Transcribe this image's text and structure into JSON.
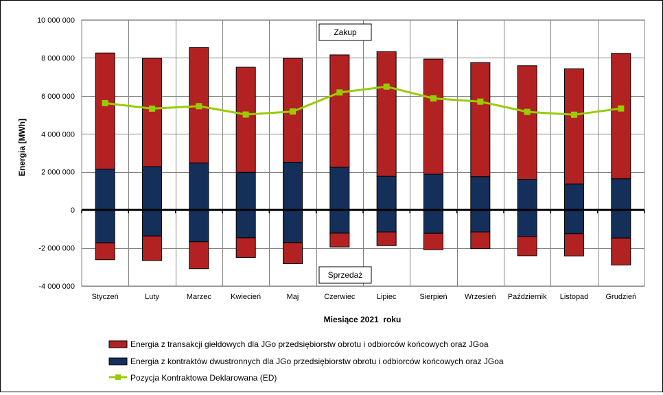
{
  "chart_data": {
    "type": "bar",
    "xlabel": "Miesiące 2021  roku",
    "ylabel": "Energia [MWh]",
    "ylim": [
      -4000000,
      10000000
    ],
    "yticks": [
      10000000,
      8000000,
      6000000,
      4000000,
      2000000,
      0,
      -2000000,
      -4000000
    ],
    "ytick_labels": [
      "10 000 000",
      "8 000 000",
      "6 000 000",
      "4 000 000",
      "2 000 000",
      "0",
      "-2 000 000",
      "-4 000 000"
    ],
    "grid": true,
    "legend_position": "bottom",
    "annotations": {
      "top": "Zakup",
      "bottom": "Sprzedaż"
    },
    "categories": [
      "Styczeń",
      "Luty",
      "Marzec",
      "Kwiecień",
      "Maj",
      "Czerwiec",
      "Lipiec",
      "Sierpień",
      "Wrzesień",
      "Październik",
      "Listopad",
      "Grudzień"
    ],
    "series": [
      {
        "name": "Energia z kontraktów dwustronnych dla JGo przedsiębiorstw obrotu i odbiorców końcowych oraz JGoa",
        "kind": "stacked-bar",
        "color": "#14305a",
        "values_positive": [
          2150000,
          2280000,
          2470000,
          1980000,
          2510000,
          2250000,
          1770000,
          1880000,
          1750000,
          1610000,
          1370000,
          1640000
        ],
        "values_negative": [
          -1730000,
          -1370000,
          -1680000,
          -1470000,
          -1720000,
          -1220000,
          -1160000,
          -1230000,
          -1160000,
          -1400000,
          -1250000,
          -1480000
        ]
      },
      {
        "name": "Energia z transakcji giełdowych dla JGo przedsiębiorstw obrotu i odbiorców końcowych oraz JGoa",
        "kind": "stacked-bar",
        "color": "#b22222",
        "values_positive": [
          6110000,
          5700000,
          6070000,
          5530000,
          5470000,
          5910000,
          6560000,
          6060000,
          6000000,
          5980000,
          6060000,
          6600000
        ],
        "values_negative": [
          -890000,
          -1290000,
          -1410000,
          -1030000,
          -1110000,
          -730000,
          -720000,
          -860000,
          -880000,
          -1010000,
          -1170000,
          -1420000
        ]
      },
      {
        "name": "Pozycja Kontraktowa Deklarowana (ED)",
        "kind": "line",
        "color": "#99cc00",
        "values": [
          5620000,
          5330000,
          5460000,
          5020000,
          5180000,
          6180000,
          6490000,
          5870000,
          5700000,
          5160000,
          5010000,
          5340000
        ]
      }
    ]
  }
}
